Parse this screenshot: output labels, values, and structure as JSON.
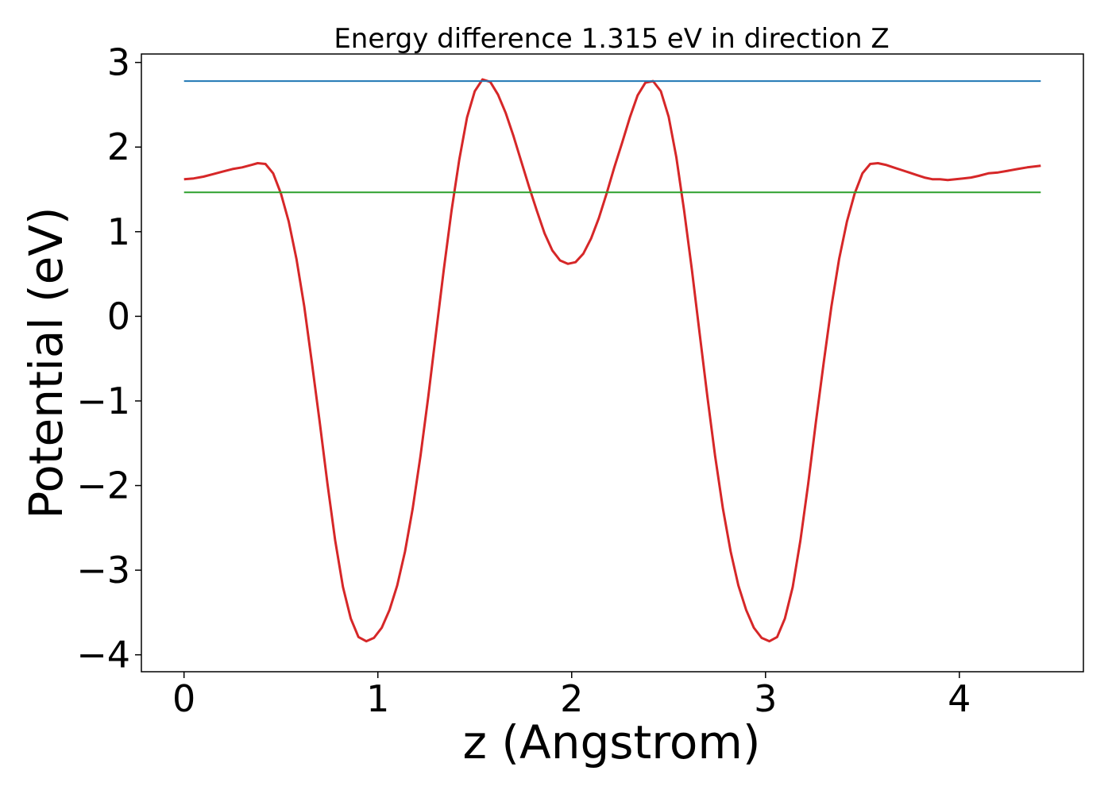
{
  "chart_data": {
    "type": "line",
    "title": "Energy difference 1.315 eV in direction Z",
    "xlabel": "z (Angstrom)",
    "ylabel": "Potential (eV)",
    "xlim": [
      -0.22,
      4.64
    ],
    "ylim": [
      -4.2,
      3.1
    ],
    "xticks": [
      0,
      1,
      2,
      3,
      4
    ],
    "xtick_labels": [
      "0",
      "1",
      "2",
      "3",
      "4"
    ],
    "yticks": [
      -4,
      -3,
      -2,
      -1,
      0,
      1,
      2,
      3
    ],
    "ytick_labels": [
      "−4",
      "−3",
      "−2",
      "−1",
      "0",
      "1",
      "2",
      "3"
    ],
    "grid": false,
    "series": [
      {
        "color": "#d62728",
        "x": [
          0.0,
          0.05,
          0.1,
          0.15,
          0.2,
          0.25,
          0.3,
          0.35,
          0.38,
          0.42,
          0.46,
          0.5,
          0.54,
          0.58,
          0.62,
          0.66,
          0.7,
          0.74,
          0.78,
          0.82,
          0.86,
          0.9,
          0.94,
          0.98,
          1.02,
          1.06,
          1.1,
          1.14,
          1.18,
          1.22,
          1.26,
          1.3,
          1.34,
          1.38,
          1.42,
          1.46,
          1.5,
          1.54,
          1.58,
          1.62,
          1.66,
          1.7,
          1.74,
          1.78,
          1.82,
          1.86,
          1.9,
          1.94,
          1.98,
          2.02,
          2.06,
          2.1,
          2.14,
          2.18,
          2.22,
          2.26,
          2.3,
          2.34,
          2.38,
          2.42,
          2.46,
          2.5,
          2.54,
          2.58,
          2.62,
          2.66,
          2.7,
          2.74,
          2.78,
          2.82,
          2.86,
          2.9,
          2.94,
          2.98,
          3.02,
          3.06,
          3.1,
          3.14,
          3.18,
          3.22,
          3.26,
          3.3,
          3.34,
          3.38,
          3.42,
          3.46,
          3.5,
          3.54,
          3.58,
          3.62,
          3.66,
          3.7,
          3.74,
          3.78,
          3.82,
          3.86,
          3.9,
          3.94,
          3.98,
          4.02,
          4.06,
          4.1,
          4.15,
          4.2,
          4.25,
          4.3,
          4.35,
          4.42
        ],
        "y": [
          1.62,
          1.63,
          1.65,
          1.68,
          1.71,
          1.74,
          1.76,
          1.79,
          1.81,
          1.8,
          1.69,
          1.45,
          1.12,
          0.68,
          0.12,
          -0.55,
          -1.25,
          -1.98,
          -2.65,
          -3.2,
          -3.57,
          -3.79,
          -3.84,
          -3.8,
          -3.68,
          -3.47,
          -3.18,
          -2.78,
          -2.27,
          -1.65,
          -0.95,
          -0.2,
          0.55,
          1.25,
          1.85,
          2.35,
          2.66,
          2.8,
          2.77,
          2.62,
          2.4,
          2.13,
          1.83,
          1.53,
          1.25,
          0.98,
          0.78,
          0.66,
          0.62,
          0.64,
          0.74,
          0.92,
          1.16,
          1.45,
          1.76,
          2.05,
          2.35,
          2.61,
          2.76,
          2.78,
          2.66,
          2.36,
          1.88,
          1.25,
          0.55,
          -0.2,
          -0.95,
          -1.65,
          -2.27,
          -2.78,
          -3.18,
          -3.47,
          -3.68,
          -3.8,
          -3.84,
          -3.79,
          -3.57,
          -3.2,
          -2.65,
          -1.98,
          -1.25,
          -0.55,
          0.12,
          0.68,
          1.12,
          1.45,
          1.69,
          1.8,
          1.81,
          1.79,
          1.76,
          1.73,
          1.7,
          1.67,
          1.64,
          1.62,
          1.62,
          1.61,
          1.62,
          1.63,
          1.64,
          1.66,
          1.69,
          1.7,
          1.72,
          1.74,
          1.76,
          1.78
        ]
      },
      {
        "color": "#1f77b4",
        "x": [
          0.0,
          4.42
        ],
        "y": [
          2.78,
          2.78
        ]
      },
      {
        "color": "#2ca02c",
        "x": [
          0.0,
          4.42
        ],
        "y": [
          1.465,
          1.465
        ]
      }
    ]
  }
}
